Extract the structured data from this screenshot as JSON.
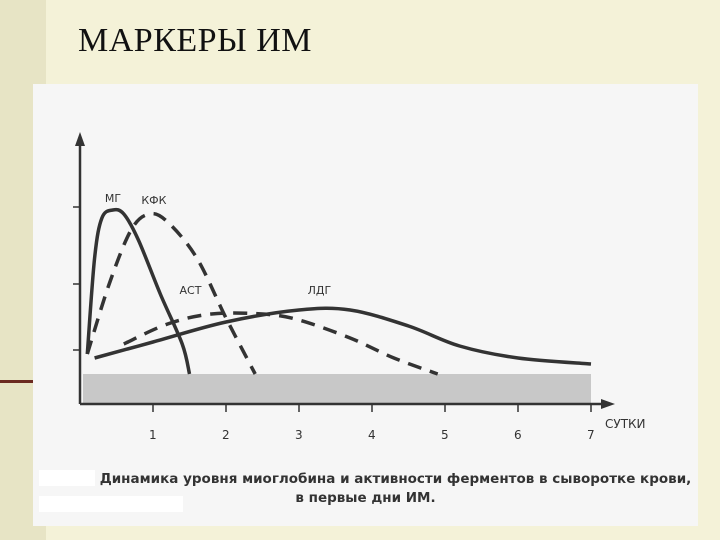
{
  "slide": {
    "title": "МАРКЕРЫ ИМ"
  },
  "colors": {
    "slide_background": "#f4f2d8",
    "figure_background": "#f6f6f6",
    "curve": "#333333",
    "baseline_band": "#c8c8c8",
    "accent": "#6b2a20"
  },
  "chart_data": {
    "type": "line",
    "title": "",
    "xlabel": "СУТКИ",
    "ylabel": "",
    "xlim": [
      0,
      7.3
    ],
    "ylim": [
      0,
      1
    ],
    "x_ticks": [
      "1",
      "2",
      "3",
      "4",
      "5",
      "6",
      "7"
    ],
    "grid": false,
    "series": [
      {
        "name": "МГ",
        "style": "solid",
        "points": [
          [
            0.1,
            0.1
          ],
          [
            0.2,
            0.58
          ],
          [
            0.3,
            0.78
          ],
          [
            0.45,
            0.82
          ],
          [
            0.6,
            0.8
          ],
          [
            0.8,
            0.67
          ],
          [
            1.1,
            0.4
          ],
          [
            1.4,
            0.15
          ],
          [
            1.5,
            0.0
          ]
        ]
      },
      {
        "name": "КФК",
        "style": "dashed",
        "points": [
          [
            0.1,
            0.1
          ],
          [
            0.4,
            0.45
          ],
          [
            0.7,
            0.72
          ],
          [
            0.95,
            0.8
          ],
          [
            1.2,
            0.76
          ],
          [
            1.6,
            0.58
          ],
          [
            2.0,
            0.28
          ],
          [
            2.4,
            0.0
          ]
        ]
      },
      {
        "name": "АСТ",
        "style": "dashed",
        "points": [
          [
            0.6,
            0.15
          ],
          [
            1.2,
            0.25
          ],
          [
            1.8,
            0.3
          ],
          [
            2.5,
            0.3
          ],
          [
            3.0,
            0.27
          ],
          [
            3.7,
            0.18
          ],
          [
            4.3,
            0.08
          ],
          [
            4.9,
            0.0
          ]
        ]
      },
      {
        "name": "ЛДГ",
        "style": "solid",
        "points": [
          [
            0.2,
            0.08
          ],
          [
            1.0,
            0.16
          ],
          [
            2.0,
            0.26
          ],
          [
            3.0,
            0.32
          ],
          [
            3.7,
            0.32
          ],
          [
            4.5,
            0.24
          ],
          [
            5.2,
            0.14
          ],
          [
            6.0,
            0.08
          ],
          [
            7.0,
            0.05
          ]
        ]
      }
    ]
  },
  "caption": {
    "line1": "Динамика уровня миоглобина и активности ферментов в сыворотке крови,",
    "line2": "в первые дни ИМ."
  }
}
